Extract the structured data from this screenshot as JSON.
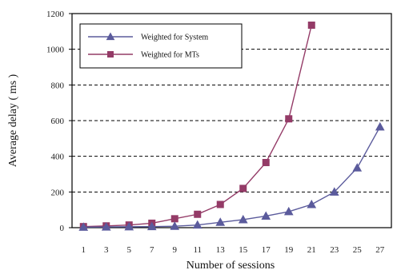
{
  "chart_data": {
    "type": "line",
    "xlabel": "Number of sessions",
    "ylabel": "Average delay ( ms )",
    "categories": [
      "1",
      "3",
      "5",
      "7",
      "9",
      "11",
      "13",
      "15",
      "17",
      "19",
      "21",
      "23",
      "25",
      "27"
    ],
    "ylim": [
      0,
      1200
    ],
    "yticks": [
      "0",
      "200",
      "400",
      "600",
      "800",
      "1000",
      "1200"
    ],
    "grid": "horizontal-dashed",
    "legend_position": "top-left",
    "series": [
      {
        "name": "Weighted for System",
        "marker": "triangle",
        "color": "#5b5b9c",
        "values": [
          3,
          4,
          5,
          6,
          8,
          15,
          30,
          45,
          65,
          90,
          130,
          200,
          335,
          565
        ]
      },
      {
        "name": "Weighted for MTs",
        "marker": "square",
        "color": "#943b67",
        "values": [
          6,
          10,
          15,
          25,
          50,
          75,
          130,
          220,
          365,
          610,
          1135,
          null,
          null,
          null
        ]
      }
    ]
  }
}
